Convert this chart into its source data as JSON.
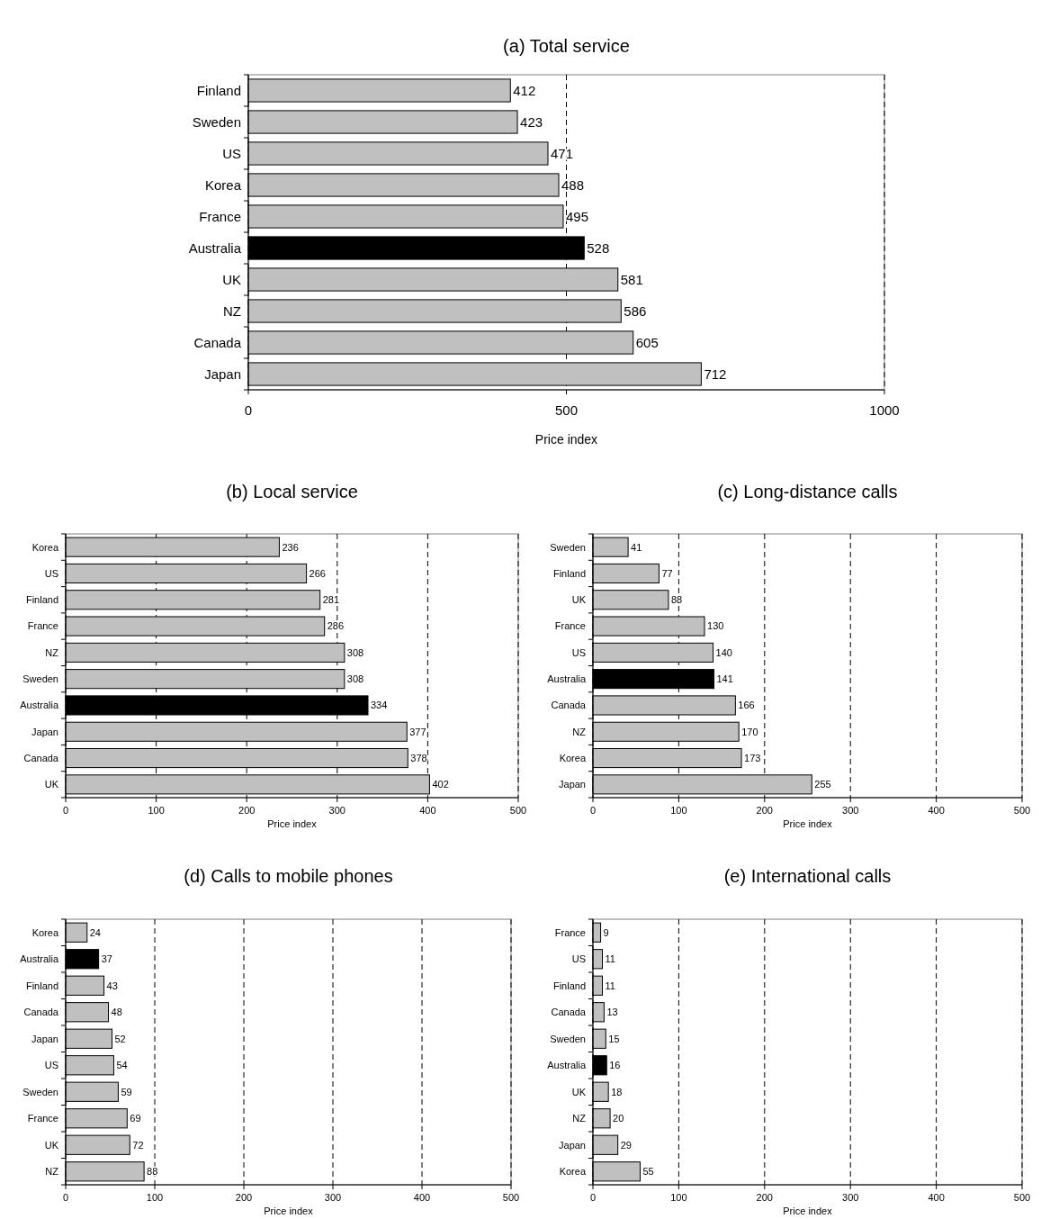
{
  "chart_data": [
    {
      "type": "bar",
      "orientation": "horizontal",
      "title": "(a) Total service",
      "xlabel": "Price index",
      "categories": [
        "Finland",
        "Sweden",
        "US",
        "Korea",
        "France",
        "Australia",
        "UK",
        "NZ",
        "Canada",
        "Japan"
      ],
      "values": [
        412,
        423,
        471,
        488,
        495,
        528,
        581,
        586,
        605,
        712
      ],
      "colors": [
        "#c0c0c0",
        "#c0c0c0",
        "#c0c0c0",
        "#c0c0c0",
        "#c0c0c0",
        "#000000",
        "#c0c0c0",
        "#c0c0c0",
        "#c0c0c0",
        "#c0c0c0"
      ],
      "xlim": [
        0,
        1000
      ],
      "xticks": [
        0,
        500,
        1000
      ],
      "grid": "x",
      "data_labels": true
    },
    {
      "type": "bar",
      "orientation": "horizontal",
      "title": "(b) Local service",
      "xlabel": "Price index",
      "categories": [
        "Korea",
        "US",
        "Finland",
        "France",
        "NZ",
        "Sweden",
        "Australia",
        "Japan",
        "Canada",
        "UK"
      ],
      "values": [
        236,
        266,
        281,
        286,
        308,
        308,
        334,
        377,
        378,
        402
      ],
      "colors": [
        "#c0c0c0",
        "#c0c0c0",
        "#c0c0c0",
        "#c0c0c0",
        "#c0c0c0",
        "#c0c0c0",
        "#000000",
        "#c0c0c0",
        "#c0c0c0",
        "#c0c0c0"
      ],
      "xlim": [
        0,
        500
      ],
      "xticks": [
        0,
        100,
        200,
        300,
        400,
        500
      ],
      "grid": "x",
      "data_labels": true
    },
    {
      "type": "bar",
      "orientation": "horizontal",
      "title": "(c) Long-distance calls",
      "xlabel": "Price index",
      "categories": [
        "Sweden",
        "Finland",
        "UK",
        "France",
        "US",
        "Australia",
        "Canada",
        "NZ",
        "Korea",
        "Japan"
      ],
      "values": [
        41,
        77,
        88,
        130,
        140,
        141,
        166,
        170,
        173,
        255
      ],
      "colors": [
        "#c0c0c0",
        "#c0c0c0",
        "#c0c0c0",
        "#c0c0c0",
        "#c0c0c0",
        "#000000",
        "#c0c0c0",
        "#c0c0c0",
        "#c0c0c0",
        "#c0c0c0"
      ],
      "xlim": [
        0,
        500
      ],
      "xticks": [
        0,
        100,
        200,
        300,
        400,
        500
      ],
      "grid": "x",
      "data_labels": true
    },
    {
      "type": "bar",
      "orientation": "horizontal",
      "title": "(d) Calls to mobile phones",
      "xlabel": "Price index",
      "categories": [
        "Korea",
        "Australia",
        "Finland",
        "Canada",
        "Japan",
        "US",
        "Sweden",
        "France",
        "UK",
        "NZ"
      ],
      "values": [
        24,
        37,
        43,
        48,
        52,
        54,
        59,
        69,
        72,
        88
      ],
      "colors": [
        "#c0c0c0",
        "#000000",
        "#c0c0c0",
        "#c0c0c0",
        "#c0c0c0",
        "#c0c0c0",
        "#c0c0c0",
        "#c0c0c0",
        "#c0c0c0",
        "#c0c0c0"
      ],
      "xlim": [
        0,
        500
      ],
      "xticks": [
        0,
        100,
        200,
        300,
        400,
        500
      ],
      "grid": "x",
      "data_labels": true
    },
    {
      "type": "bar",
      "orientation": "horizontal",
      "title": "(e) International calls",
      "xlabel": "Price index",
      "categories": [
        "France",
        "US",
        "Finland",
        "Canada",
        "Sweden",
        "Australia",
        "UK",
        "NZ",
        "Japan",
        "Korea"
      ],
      "values": [
        9,
        11,
        11,
        13,
        15,
        16,
        18,
        20,
        29,
        55
      ],
      "colors": [
        "#c0c0c0",
        "#c0c0c0",
        "#c0c0c0",
        "#c0c0c0",
        "#c0c0c0",
        "#000000",
        "#c0c0c0",
        "#c0c0c0",
        "#c0c0c0",
        "#c0c0c0"
      ],
      "xlim": [
        0,
        500
      ],
      "xticks": [
        0,
        100,
        200,
        300,
        400,
        500
      ],
      "grid": "x",
      "data_labels": true
    }
  ]
}
